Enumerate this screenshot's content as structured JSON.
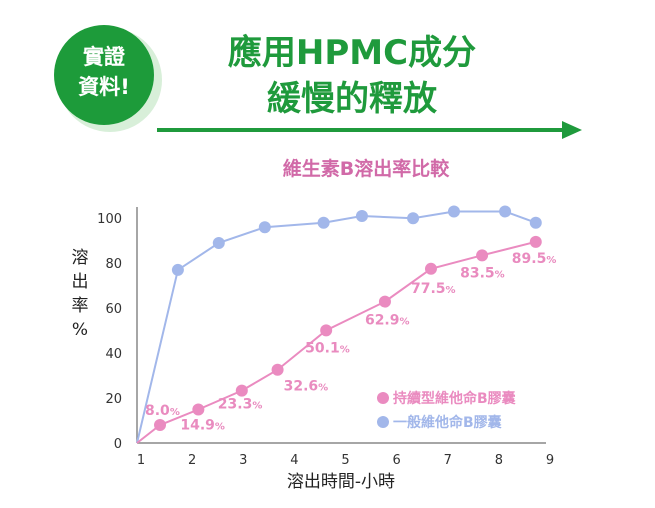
{
  "badge": {
    "line1": "實證",
    "line2": "資料!"
  },
  "headline": {
    "line1": "應用HPMC成分",
    "line2": "緩慢的釋放"
  },
  "colors": {
    "accent_green": "#1f9a3c",
    "badge_green": "#1d9b3a",
    "pink": "#ea8bc0",
    "blue": "#a2b7ea"
  },
  "chart_data": {
    "type": "line",
    "title": "維生素B溶出率比較",
    "xlabel": "溶出時間-小時",
    "ylabel": [
      "溶",
      "出",
      "率",
      "%"
    ],
    "xlim": [
      1,
      9
    ],
    "ylim": [
      0,
      105
    ],
    "x_ticks": [
      "1",
      "2",
      "3",
      "4",
      "5",
      "6",
      "7",
      "8",
      "9"
    ],
    "y_ticks": [
      "0",
      "20",
      "40",
      "60",
      "80",
      "100"
    ],
    "legend_position": "bottom-right",
    "series": [
      {
        "name": "持續型維他命B膠囊",
        "color": "#ea8bc0",
        "points": [
          {
            "x": 1.0,
            "y": 0
          },
          {
            "x": 1.45,
            "y": 8.0,
            "label": "8.0",
            "unit": "%"
          },
          {
            "x": 2.2,
            "y": 14.9,
            "label": "14.9",
            "unit": "%"
          },
          {
            "x": 3.05,
            "y": 23.3,
            "label": "23.3",
            "unit": "%"
          },
          {
            "x": 3.75,
            "y": 32.6,
            "label": "32.6",
            "unit": "%"
          },
          {
            "x": 4.7,
            "y": 50.1,
            "label": "50.1",
            "unit": "%"
          },
          {
            "x": 5.85,
            "y": 62.9,
            "label": "62.9",
            "unit": "%"
          },
          {
            "x": 6.75,
            "y": 77.5,
            "label": "77.5",
            "unit": "%"
          },
          {
            "x": 7.75,
            "y": 83.5,
            "label": "83.5",
            "unit": "%"
          },
          {
            "x": 8.8,
            "y": 89.5,
            "label": "89.5",
            "unit": "%"
          }
        ]
      },
      {
        "name": "一般維他命B膠囊",
        "color": "#a2b7ea",
        "points": [
          {
            "x": 1.0,
            "y": 0
          },
          {
            "x": 1.8,
            "y": 77
          },
          {
            "x": 2.6,
            "y": 89
          },
          {
            "x": 3.5,
            "y": 96
          },
          {
            "x": 4.65,
            "y": 98
          },
          {
            "x": 5.4,
            "y": 101
          },
          {
            "x": 6.4,
            "y": 100
          },
          {
            "x": 7.2,
            "y": 103
          },
          {
            "x": 8.2,
            "y": 103
          },
          {
            "x": 8.8,
            "y": 98
          }
        ]
      }
    ]
  }
}
